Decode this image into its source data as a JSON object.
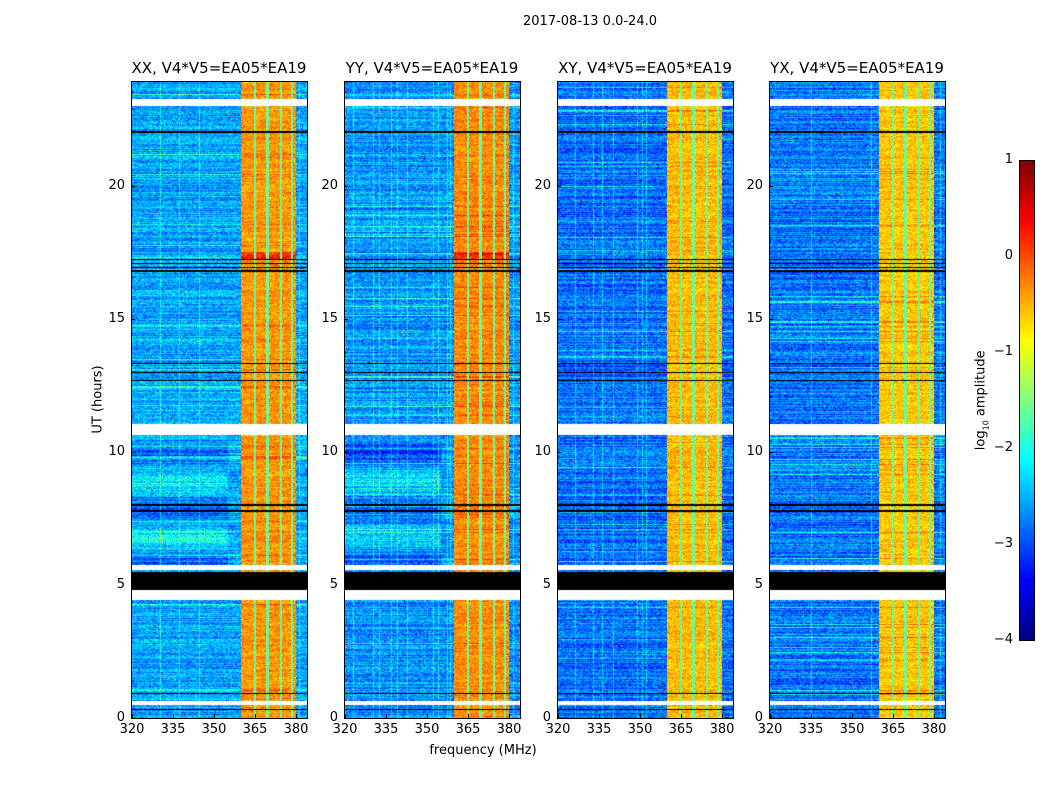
{
  "chart_data": {
    "type": "heatmap",
    "title": "2017-08-13 0.0-24.0",
    "xlabel": "frequency (MHz)",
    "ylabel": "UT (hours)",
    "xlim": [
      320,
      384
    ],
    "ylim": [
      0,
      23.9
    ],
    "xticks": [
      "320",
      "335",
      "350",
      "365",
      "380"
    ],
    "xtick_values": [
      320,
      335,
      350,
      365,
      380
    ],
    "yticks": [
      "0",
      "5",
      "10",
      "15",
      "20"
    ],
    "ytick_values": [
      0,
      5,
      10,
      15,
      20
    ],
    "panels": [
      {
        "title": "XX, V4*V5=EA05*EA19",
        "band_level": -0.35,
        "bg_level": -2.55
      },
      {
        "title": "YY, V4*V5=EA05*EA19",
        "band_level": -0.3,
        "bg_level": -2.65
      },
      {
        "title": "XY, V4*V5=EA05*EA19",
        "band_level": -0.55,
        "bg_level": -2.85
      },
      {
        "title": "YX, V4*V5=EA05*EA19",
        "band_level": -0.6,
        "bg_level": -2.8
      }
    ],
    "rfi_band_mhz": [
      360,
      380
    ],
    "rfi_band_gaps_mhz": [
      365,
      369.5,
      374.5,
      378.5
    ],
    "flagged_blank_hours": [
      [
        23.0,
        23.25
      ],
      [
        10.65,
        11.05
      ],
      [
        4.45,
        4.8
      ],
      [
        5.55,
        5.75
      ],
      [
        0.5,
        0.65
      ]
    ],
    "flagged_black_hours": [
      [
        4.8,
        5.5
      ],
      [
        16.75,
        16.82
      ],
      [
        16.9,
        16.95
      ],
      [
        17.05,
        17.1
      ],
      [
        17.2,
        17.26
      ],
      [
        12.65,
        12.7
      ],
      [
        12.95,
        13.0
      ],
      [
        13.3,
        13.35
      ],
      [
        7.75,
        7.8
      ],
      [
        7.98,
        8.03
      ],
      [
        22.0,
        22.05
      ],
      [
        0.9,
        0.95
      ],
      [
        0.3,
        0.34
      ]
    ],
    "colorbar": {
      "label": "log10 amplitude",
      "label_main": "log",
      "label_sub": "10",
      "label_rest": " amplitude",
      "range": [
        -4,
        1
      ],
      "ticks": [
        "1",
        "0",
        "−1",
        "−2",
        "−3",
        "−4"
      ],
      "tick_values": [
        1,
        0,
        -1,
        -2,
        -3,
        -4
      ],
      "colormap": "jet"
    }
  }
}
